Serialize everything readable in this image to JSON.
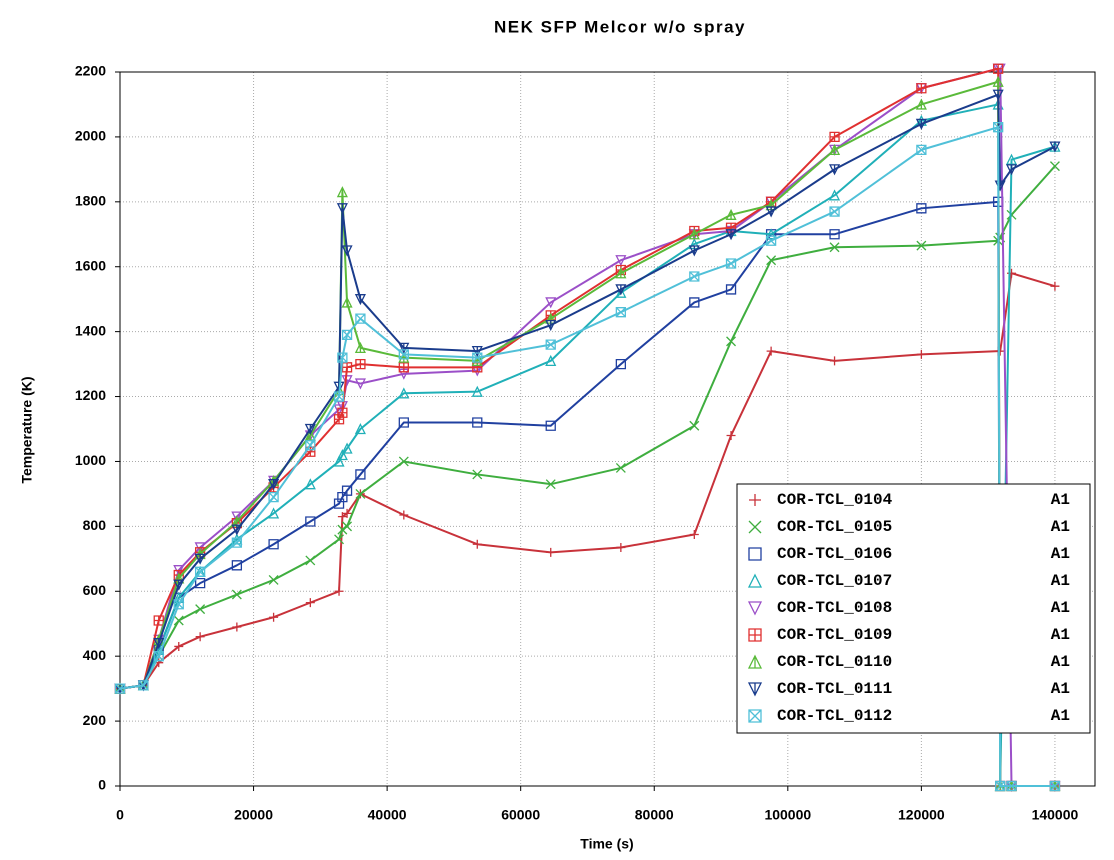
{
  "chart_data": {
    "type": "line",
    "title": "NEK SFP Melcor w/o spray",
    "xlabel": "Time (s)",
    "ylabel": "Temperature  (K)",
    "x": [
      0,
      3500,
      5800,
      8800,
      12000,
      17500,
      23000,
      28500,
      32800,
      33300,
      34000,
      36000,
      42500,
      53500,
      64500,
      75000,
      86000,
      91500,
      97500,
      107000,
      120000,
      131500,
      131800,
      133500,
      140000
    ],
    "xlim": [
      0,
      146000
    ],
    "xticks": [
      0,
      20000,
      40000,
      60000,
      80000,
      100000,
      120000,
      140000
    ],
    "ylim": [
      0,
      2200
    ],
    "yticks": [
      0,
      200,
      400,
      600,
      800,
      1000,
      1200,
      1400,
      1600,
      1800,
      2000,
      2200
    ],
    "grid": true,
    "legend": "lower right",
    "series": [
      {
        "name": "COR-TCL_0104",
        "suffix": "A1",
        "color": "#c8323a",
        "marker": "plus",
        "values": [
          300,
          310,
          380,
          430,
          460,
          490,
          520,
          565,
          600,
          830,
          840,
          900,
          835,
          745,
          720,
          735,
          775,
          1080,
          1340,
          1310,
          1330,
          1340,
          1340,
          1580,
          1540
        ]
      },
      {
        "name": "COR-TCL_0105",
        "suffix": "A1",
        "color": "#3fae3f",
        "marker": "x",
        "values": [
          300,
          310,
          400,
          510,
          545,
          590,
          635,
          695,
          760,
          790,
          800,
          900,
          1000,
          960,
          930,
          980,
          1110,
          1370,
          1620,
          1660,
          1665,
          1680,
          1690,
          1760,
          1910
        ]
      },
      {
        "name": "COR-TCL_0106",
        "suffix": "A1",
        "color": "#2040a0",
        "marker": "square",
        "values": [
          300,
          310,
          420,
          580,
          625,
          680,
          745,
          815,
          870,
          890,
          910,
          960,
          1120,
          1120,
          1110,
          1300,
          1490,
          1530,
          1700,
          1700,
          1780,
          1800,
          0,
          0,
          0
        ]
      },
      {
        "name": "COR-TCL_0107",
        "suffix": "A1",
        "color": "#20b0b8",
        "marker": "triangle",
        "values": [
          300,
          310,
          420,
          580,
          660,
          760,
          840,
          930,
          1000,
          1020,
          1040,
          1100,
          1210,
          1215,
          1310,
          1520,
          1670,
          1710,
          1700,
          1820,
          2050,
          2100,
          0,
          1930,
          1970
        ]
      },
      {
        "name": "COR-TCL_0108",
        "suffix": "A1",
        "color": "#9b4fc8",
        "marker": "triangle-down",
        "values": [
          300,
          310,
          450,
          665,
          735,
          830,
          940,
          1080,
          1160,
          1170,
          1250,
          1240,
          1270,
          1280,
          1490,
          1620,
          1700,
          1710,
          1800,
          1960,
          2150,
          2210,
          2210,
          0,
          0
        ]
      },
      {
        "name": "COR-TCL_0109",
        "suffix": "A1",
        "color": "#e03030",
        "marker": "square-plus",
        "values": [
          300,
          310,
          510,
          650,
          720,
          810,
          920,
          1030,
          1130,
          1150,
          1290,
          1300,
          1290,
          1290,
          1450,
          1590,
          1710,
          1720,
          1800,
          2000,
          2150,
          2210,
          0,
          0,
          0
        ]
      },
      {
        "name": "COR-TCL_0110",
        "suffix": "A1",
        "color": "#5aba3a",
        "marker": "triangle-plus",
        "values": [
          300,
          310,
          450,
          640,
          715,
          815,
          940,
          1080,
          1220,
          1830,
          1490,
          1350,
          1320,
          1310,
          1440,
          1580,
          1700,
          1760,
          1790,
          1960,
          2100,
          2170,
          0,
          0,
          0
        ]
      },
      {
        "name": "COR-TCL_0111",
        "suffix": "A1",
        "color": "#1a3c8c",
        "marker": "triangle-down-plus",
        "values": [
          300,
          310,
          440,
          620,
          700,
          790,
          930,
          1100,
          1230,
          1780,
          1650,
          1500,
          1350,
          1340,
          1420,
          1530,
          1650,
          1700,
          1770,
          1900,
          2040,
          2130,
          1850,
          1900,
          1970
        ]
      },
      {
        "name": "COR-TCL_0112",
        "suffix": "A1",
        "color": "#50c0d8",
        "marker": "square-x",
        "values": [
          300,
          310,
          400,
          560,
          660,
          750,
          890,
          1050,
          1200,
          1320,
          1390,
          1440,
          1330,
          1320,
          1360,
          1460,
          1570,
          1610,
          1680,
          1770,
          1960,
          2030,
          0,
          0,
          0
        ]
      }
    ]
  }
}
